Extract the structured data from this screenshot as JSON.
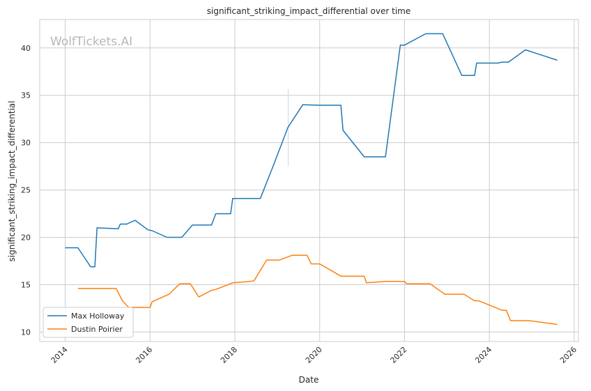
{
  "watermark": "WolfTickets.AI",
  "chart_data": {
    "type": "line",
    "title": "significant_striking_impact_differential over time",
    "xlabel": "Date",
    "ylabel": "significant_striking_impact_differential",
    "xlim": [
      2013.4,
      2026.1
    ],
    "ylim": [
      9.0,
      43.0
    ],
    "x_ticks": [
      2014,
      2016,
      2018,
      2020,
      2022,
      2024,
      2026
    ],
    "y_ticks": [
      10,
      15,
      20,
      25,
      30,
      35,
      40
    ],
    "grid": true,
    "legend_position": "lower-left",
    "series": [
      {
        "name": "Max Holloway",
        "color": "#1f77b4",
        "points": [
          [
            2014.0,
            18.9
          ],
          [
            2014.3,
            18.9
          ],
          [
            2014.6,
            16.9
          ],
          [
            2014.7,
            16.9
          ],
          [
            2014.75,
            21.0
          ],
          [
            2015.25,
            20.9
          ],
          [
            2015.3,
            21.4
          ],
          [
            2015.45,
            21.4
          ],
          [
            2015.65,
            21.8
          ],
          [
            2015.95,
            20.8
          ],
          [
            2016.05,
            20.7
          ],
          [
            2016.4,
            20.0
          ],
          [
            2016.75,
            20.0
          ],
          [
            2017.0,
            21.3
          ],
          [
            2017.45,
            21.3
          ],
          [
            2017.55,
            22.5
          ],
          [
            2017.9,
            22.5
          ],
          [
            2017.95,
            24.1
          ],
          [
            2018.6,
            24.1
          ],
          [
            2018.9,
            27.5
          ],
          [
            2019.25,
            31.6
          ],
          [
            2019.6,
            34.0
          ],
          [
            2020.0,
            33.95
          ],
          [
            2020.5,
            33.95
          ],
          [
            2020.55,
            31.3
          ],
          [
            2021.05,
            28.5
          ],
          [
            2021.55,
            28.5
          ],
          [
            2021.9,
            40.3
          ],
          [
            2022.0,
            40.3
          ],
          [
            2022.5,
            41.5
          ],
          [
            2022.9,
            41.5
          ],
          [
            2023.35,
            37.1
          ],
          [
            2023.65,
            37.1
          ],
          [
            2023.7,
            38.4
          ],
          [
            2024.2,
            38.4
          ],
          [
            2024.3,
            38.5
          ],
          [
            2024.45,
            38.5
          ],
          [
            2024.85,
            39.8
          ],
          [
            2025.6,
            38.7
          ]
        ]
      },
      {
        "name": "Dustin Poirier",
        "color": "#ff7f0e",
        "points": [
          [
            2014.3,
            14.6
          ],
          [
            2015.2,
            14.6
          ],
          [
            2015.35,
            13.3
          ],
          [
            2015.5,
            12.6
          ],
          [
            2016.0,
            12.6
          ],
          [
            2016.05,
            13.2
          ],
          [
            2016.45,
            14.0
          ],
          [
            2016.7,
            15.1
          ],
          [
            2016.95,
            15.1
          ],
          [
            2017.15,
            13.7
          ],
          [
            2017.45,
            14.4
          ],
          [
            2017.55,
            14.5
          ],
          [
            2017.95,
            15.2
          ],
          [
            2018.25,
            15.3
          ],
          [
            2018.45,
            15.4
          ],
          [
            2018.75,
            17.6
          ],
          [
            2019.05,
            17.6
          ],
          [
            2019.35,
            18.1
          ],
          [
            2019.7,
            18.1
          ],
          [
            2019.8,
            17.2
          ],
          [
            2020.0,
            17.2
          ],
          [
            2020.5,
            15.9
          ],
          [
            2021.05,
            15.9
          ],
          [
            2021.1,
            15.2
          ],
          [
            2021.55,
            15.35
          ],
          [
            2022.0,
            15.35
          ],
          [
            2022.05,
            15.1
          ],
          [
            2022.6,
            15.1
          ],
          [
            2022.95,
            14.0
          ],
          [
            2023.4,
            14.0
          ],
          [
            2023.65,
            13.3
          ],
          [
            2023.75,
            13.3
          ],
          [
            2024.3,
            12.3
          ],
          [
            2024.4,
            12.3
          ],
          [
            2024.5,
            11.2
          ],
          [
            2024.95,
            11.2
          ],
          [
            2025.6,
            10.8
          ]
        ]
      }
    ]
  }
}
